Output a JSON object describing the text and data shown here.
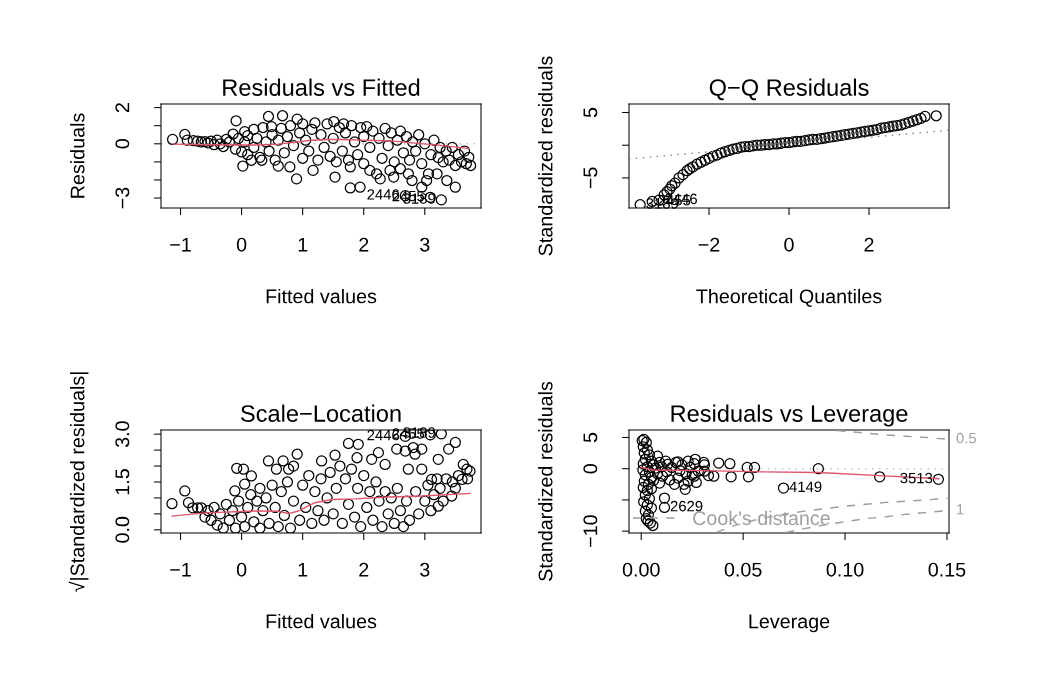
{
  "chart_data": [
    {
      "type": "scatter",
      "title": "Residuals vs Fitted",
      "xlabel": "Fitted values",
      "ylabel": "Residuals",
      "xlim": [
        -1.32,
        3.92
      ],
      "ylim": [
        -3.55,
        2.2
      ],
      "xticks": [
        {
          "value": -1,
          "label": "−1"
        },
        0,
        1,
        2,
        3
      ],
      "yticks": [
        2,
        {
          "value": 1,
          "label": null
        },
        0,
        {
          "value": -1,
          "label": null
        },
        {
          "value": -2,
          "label": null
        },
        {
          "value": -3,
          "label": "−3"
        }
      ],
      "series": [
        {
          "marker": "circle",
          "color": "#000000",
          "x": [
            -1.13,
            -0.93,
            -0.89,
            -0.79,
            -0.72,
            -0.66,
            -0.6,
            -0.55,
            -0.5,
            -0.45,
            -0.4,
            -0.35,
            -0.3,
            -0.25,
            -0.2,
            -0.14,
            -0.1,
            -0.09,
            -0.05,
            0.0,
            0.02,
            0.05,
            0.05,
            0.1,
            0.1,
            0.16,
            0.2,
            0.2,
            0.25,
            0.3,
            0.33,
            0.35,
            0.4,
            0.44,
            0.45,
            0.49,
            0.5,
            0.55,
            0.6,
            0.6,
            0.65,
            0.67,
            0.7,
            0.75,
            0.79,
            0.8,
            0.85,
            0.9,
            0.91,
            0.95,
            1.0,
            1.0,
            1.05,
            1.1,
            1.15,
            1.17,
            1.2,
            1.25,
            1.3,
            1.35,
            1.4,
            1.45,
            1.5,
            1.51,
            1.53,
            1.55,
            1.6,
            1.65,
            1.67,
            1.7,
            1.75,
            1.78,
            1.78,
            1.8,
            1.85,
            1.9,
            1.94,
            1.95,
            2.0,
            2.0,
            2.05,
            2.1,
            2.1,
            2.15,
            2.21,
            2.25,
            2.27,
            2.3,
            2.35,
            2.4,
            2.43,
            2.45,
            2.49,
            2.5,
            2.55,
            2.6,
            2.6,
            2.65,
            2.68,
            2.7,
            2.73,
            2.75,
            2.79,
            2.8,
            2.85,
            2.9,
            2.95,
            2.95,
            3.0,
            3.03,
            3.06,
            3.09,
            3.1,
            3.15,
            3.2,
            3.22,
            3.25,
            3.27,
            3.3,
            3.35,
            3.36,
            3.4,
            3.45,
            3.5,
            3.5,
            3.55,
            3.6,
            3.65,
            3.68,
            3.72,
            3.75
          ],
          "values": [
            0.24,
            0.52,
            0.2,
            0.17,
            0.15,
            0.1,
            0.12,
            0.05,
            0.15,
            -0.05,
            0.2,
            0.0,
            -0.15,
            0.25,
            0.1,
            0.54,
            -0.3,
            1.27,
            0.3,
            -0.45,
            -1.23,
            0.67,
            0.1,
            0.45,
            -0.6,
            -0.91,
            0.8,
            -0.2,
            0.3,
            -0.75,
            -0.91,
            0.9,
            0.1,
            1.51,
            -0.4,
            0.95,
            0.5,
            -0.9,
            -1.23,
            0.2,
            0.85,
            1.55,
            -0.5,
            0.4,
            -1.28,
            1.0,
            -0.1,
            -1.94,
            1.36,
            0.6,
            -0.8,
            1.1,
            0.2,
            -0.4,
            0.8,
            -1.47,
            1.15,
            -0.9,
            0.5,
            -0.2,
            1.1,
            -0.7,
            0.3,
            1.23,
            -1.84,
            -1.0,
            0.9,
            -0.4,
            1.1,
            0.6,
            -0.9,
            -1.28,
            -2.44,
            1.0,
            0.1,
            -0.6,
            -2.4,
            0.9,
            -1.1,
            0.4,
            0.95,
            -1.47,
            -0.2,
            0.7,
            -1.66,
            0.3,
            -1.94,
            -0.8,
            0.85,
            -0.1,
            -1.47,
            0.6,
            -1.84,
            -1.0,
            0.2,
            -1.38,
            0.7,
            -0.5,
            -2.87,
            0.4,
            -1.66,
            -0.9,
            -2.03,
            0.1,
            -0.4,
            0.5,
            -2.4,
            -1.1,
            0.0,
            -2.03,
            -1.66,
            -2.96,
            -0.6,
            0.2,
            -1.66,
            -0.76,
            -0.2,
            -3.1,
            -1.0,
            -0.4,
            -2.03,
            -0.9,
            -0.2,
            -2.4,
            -1.2,
            -0.6,
            -1.0,
            -0.4,
            -1.1,
            -0.75,
            -1.2
          ]
        },
        {
          "type": "line",
          "color": "#df536b",
          "line_style": "solid",
          "x": [
            -1.12,
            -0.52,
            0.0,
            0.3,
            0.6,
            0.85,
            1.1,
            1.39,
            1.6,
            1.94,
            2.2,
            2.49,
            2.8,
            3.03,
            3.3,
            3.72
          ],
          "values": [
            -0.02,
            -0.05,
            -0.07,
            -0.07,
            -0.02,
            0.08,
            0.18,
            0.24,
            0.24,
            0.2,
            0.18,
            0.15,
            0.05,
            -0.02,
            -0.1,
            -0.26
          ]
        }
      ],
      "ref_lines": [
        {
          "axis": "y",
          "value": 0,
          "color": "#bebebe",
          "line_style": "dotted"
        }
      ],
      "annotations": [
        {
          "text": "2446",
          "x": 2.68,
          "y": -2.87
        },
        {
          "text": "2455",
          "x": 3.09,
          "y": -2.96
        },
        {
          "text": "3189",
          "x": 3.27,
          "y": -3.1
        }
      ]
    },
    {
      "type": "scatter",
      "title": "Q−Q Residuals",
      "xlabel": "Theoretical Quantiles",
      "ylabel": "Standardized residuals",
      "xlim": [
        -4.0,
        4.0
      ],
      "ylim": [
        -9.6,
        6.3
      ],
      "xticks": [
        {
          "value": -2,
          "label": "−2"
        },
        0,
        2
      ],
      "yticks": [
        5,
        {
          "value": 0,
          "label": null
        },
        {
          "value": -5,
          "label": "−5"
        }
      ],
      "series": [
        {
          "marker": "circle",
          "color": "#000000",
          "x": [
            -3.72,
            -3.42,
            -3.25,
            -3.12,
            -3.05,
            -2.98,
            -2.93,
            -2.85,
            -2.75,
            -2.65,
            -2.55,
            -2.48,
            -2.4,
            -2.3,
            -2.2,
            -2.1,
            -2.0,
            -1.9,
            -1.8,
            -1.7,
            -1.6,
            -1.5,
            -1.4,
            -1.3,
            -1.2,
            -1.1,
            -1.0,
            -0.9,
            -0.8,
            -0.7,
            -0.6,
            -0.5,
            -0.4,
            -0.3,
            -0.2,
            -0.1,
            0.0,
            0.1,
            0.2,
            0.3,
            0.4,
            0.5,
            0.6,
            0.7,
            0.8,
            0.9,
            1.0,
            1.1,
            1.2,
            1.3,
            1.4,
            1.5,
            1.6,
            1.7,
            1.8,
            1.9,
            2.0,
            2.1,
            2.2,
            2.3,
            2.4,
            2.5,
            2.6,
            2.7,
            2.8,
            2.9,
            3.0,
            3.1,
            3.2,
            3.3,
            3.4,
            3.68
          ],
          "values": [
            -9.1,
            -8.6,
            -8.4,
            -7.6,
            -7.1,
            -6.7,
            -6.2,
            -5.8,
            -5.0,
            -4.5,
            -3.9,
            -3.6,
            -3.3,
            -2.9,
            -2.6,
            -2.3,
            -2.0,
            -1.7,
            -1.5,
            -1.2,
            -1.0,
            -0.8,
            -0.6,
            -0.5,
            -0.3,
            -0.2,
            -0.2,
            -0.1,
            0.0,
            0.0,
            0.1,
            0.1,
            0.2,
            0.2,
            0.3,
            0.4,
            0.4,
            0.5,
            0.6,
            0.6,
            0.7,
            0.8,
            0.9,
            0.9,
            1.0,
            1.1,
            1.2,
            1.3,
            1.4,
            1.5,
            1.6,
            1.7,
            1.8,
            1.9,
            2.0,
            2.1,
            2.2,
            2.3,
            2.4,
            2.6,
            2.7,
            2.8,
            2.9,
            3.0,
            3.1,
            3.3,
            3.5,
            3.7,
            3.9,
            4.1,
            4.4,
            4.5
          ]
        },
        {
          "type": "line",
          "color": "#7f7f7f",
          "line_style": "dotted",
          "x": [
            -4.0,
            4.0
          ],
          "values": [
            -2.1,
            2.3
          ]
        }
      ],
      "annotations": [
        {
          "text": "3189",
          "x": -3.72,
          "y": -9.1
        },
        {
          "text": "2455",
          "x": -3.42,
          "y": -8.6
        },
        {
          "text": "2446",
          "x": -3.25,
          "y": -8.4
        }
      ]
    },
    {
      "type": "scatter",
      "title": "Scale−Location",
      "xlabel": "Fitted values",
      "ylabel": "√|Standardized residuals|",
      "xlim": [
        -1.32,
        3.92
      ],
      "ylim": [
        -0.1,
        3.13
      ],
      "xticks": [
        {
          "value": -1,
          "label": "−1"
        },
        0,
        1,
        2,
        3
      ],
      "yticks": [
        {
          "value": 0,
          "label": "0.0"
        },
        {
          "value": 0.5,
          "label": null
        },
        {
          "value": 1,
          "label": null
        },
        1.5,
        {
          "value": 2,
          "label": null
        },
        {
          "value": 2.5,
          "label": null
        },
        {
          "value": 3,
          "label": "3.0"
        }
      ],
      "series": [
        {
          "marker": "circle",
          "color": "#000000",
          "x": [
            -1.14,
            -0.93,
            -0.87,
            -0.8,
            -0.72,
            -0.66,
            -0.6,
            -0.55,
            -0.5,
            -0.45,
            -0.4,
            -0.35,
            -0.3,
            -0.25,
            -0.2,
            -0.15,
            -0.11,
            -0.1,
            -0.08,
            -0.05,
            0.0,
            0.03,
            0.05,
            0.05,
            0.1,
            0.15,
            0.16,
            0.2,
            0.25,
            0.3,
            0.3,
            0.35,
            0.4,
            0.44,
            0.45,
            0.5,
            0.55,
            0.57,
            0.6,
            0.65,
            0.68,
            0.7,
            0.75,
            0.77,
            0.8,
            0.85,
            0.85,
            0.91,
            0.95,
            1.0,
            1.05,
            1.1,
            1.15,
            1.2,
            1.25,
            1.3,
            1.31,
            1.35,
            1.4,
            1.45,
            1.5,
            1.53,
            1.55,
            1.61,
            1.65,
            1.7,
            1.75,
            1.75,
            1.8,
            1.85,
            1.89,
            1.9,
            1.91,
            1.95,
            2.0,
            2.05,
            2.1,
            2.13,
            2.15,
            2.2,
            2.24,
            2.25,
            2.3,
            2.35,
            2.35,
            2.4,
            2.45,
            2.5,
            2.54,
            2.55,
            2.6,
            2.65,
            2.68,
            2.68,
            2.7,
            2.73,
            2.75,
            2.81,
            2.84,
            2.85,
            2.9,
            2.95,
            2.95,
            3.0,
            3.05,
            3.09,
            3.1,
            3.11,
            3.15,
            3.2,
            3.22,
            3.22,
            3.25,
            3.27,
            3.3,
            3.35,
            3.39,
            3.44,
            3.45,
            3.5,
            3.5,
            3.55,
            3.61,
            3.63,
            3.69,
            3.7,
            3.74
          ],
          "values": [
            0.82,
            1.22,
            0.85,
            0.69,
            0.69,
            0.69,
            0.4,
            0.6,
            0.3,
            0.7,
            0.15,
            0.5,
            0.05,
            0.8,
            0.3,
            0.6,
            1.22,
            0.05,
            1.93,
            0.9,
            0.4,
            1.9,
            1.43,
            0.1,
            0.7,
            1.1,
            1.69,
            0.25,
            0.9,
            0.05,
            1.3,
            0.6,
            1.0,
            2.16,
            0.2,
            1.4,
            0.7,
            1.9,
            0.1,
            1.2,
            2.16,
            0.45,
            1.5,
            1.9,
            0.05,
            2.0,
            0.9,
            2.37,
            0.3,
            1.4,
            0.7,
            1.7,
            0.2,
            1.2,
            0.6,
            1.6,
            2.16,
            0.3,
            1.0,
            1.8,
            0.5,
            2.34,
            1.3,
            2.0,
            0.2,
            1.6,
            2.71,
            0.8,
            1.9,
            0.4,
            2.26,
            1.3,
            2.68,
            0.1,
            1.7,
            0.7,
            1.2,
            2.21,
            0.3,
            1.5,
            2.42,
            0.9,
            0.1,
            2.05,
            1.2,
            0.5,
            1.0,
            0.2,
            2.53,
            1.3,
            0.6,
            0.1,
            2.47,
            2.93,
            0.9,
            1.9,
            0.3,
            2.58,
            2.37,
            1.2,
            0.5,
            2.53,
            1.9,
            0.9,
            1.4,
            2.98,
            0.6,
            1.58,
            1.1,
            1.6,
            2.21,
            0.74,
            1.3,
            3.01,
            0.9,
            1.6,
            2.53,
            1.06,
            1.5,
            2.74,
            1.3,
            1.7,
            1.58,
            2.05,
            1.9,
            1.6,
            1.84
          ]
        },
        {
          "type": "line",
          "color": "#df536b",
          "line_style": "solid",
          "x": [
            -1.14,
            -0.6,
            0.22,
            0.6,
            0.77,
            0.93,
            1.2,
            1.48,
            1.86,
            2.4,
            2.95,
            3.74
          ],
          "values": [
            0.43,
            0.53,
            0.59,
            0.58,
            0.51,
            0.59,
            0.85,
            0.95,
            0.97,
            1.03,
            1.06,
            1.14
          ]
        }
      ],
      "annotations": [
        {
          "text": "2446",
          "x": 2.68,
          "y": 2.93
        },
        {
          "text": "2455",
          "x": 3.09,
          "y": 2.98
        },
        {
          "text": "3189",
          "x": 3.27,
          "y": 3.01
        }
      ]
    },
    {
      "type": "scatter",
      "title": "Residuals vs Leverage",
      "xlabel": "Leverage",
      "ylabel": "Standardized residuals",
      "xlim": [
        -0.006,
        0.151
      ],
      "ylim": [
        -10.3,
        6.2
      ],
      "xticks": [
        {
          "value": 0,
          "label": "0.00"
        },
        0.05,
        {
          "value": 0.1,
          "label": "0.10"
        },
        0.15
      ],
      "yticks": [
        5,
        0,
        {
          "value": -5,
          "label": null
        },
        {
          "value": -10,
          "label": "−10"
        }
      ],
      "legend": "bottom left",
      "series": [
        {
          "marker": "circle",
          "color": "#000000",
          "x": [
            0.0005,
            0.0013,
            0.0025,
            0.001,
            0.003,
            0.0015,
            0.004,
            0.002,
            0.005,
            0.001,
            0.003,
            0.006,
            0.0008,
            0.004,
            0.007,
            0.002,
            0.005,
            0.0015,
            0.0035,
            0.006,
            0.001,
            0.003,
            0.005,
            0.002,
            0.004,
            0.0012,
            0.003,
            0.005,
            0.002,
            0.0035,
            0.0025,
            0.0033,
            0.0045,
            0.0057,
            0.008,
            0.009,
            0.008,
            0.009,
            0.01,
            0.0105,
            0.0114,
            0.0114,
            0.012,
            0.013,
            0.0125,
            0.014,
            0.015,
            0.0163,
            0.017,
            0.018,
            0.018,
            0.019,
            0.02,
            0.021,
            0.0216,
            0.022,
            0.023,
            0.023,
            0.024,
            0.025,
            0.026,
            0.0265,
            0.026,
            0.027,
            0.028,
            0.0307,
            0.031,
            0.031,
            0.033,
            0.0356,
            0.038,
            0.0435,
            0.0441,
            0.052,
            0.0526,
            0.0556,
            0.0698,
            0.0869,
            0.117,
            0.1458
          ],
          "values": [
            4.5,
            4.7,
            4.2,
            3.5,
            3.0,
            2.5,
            2.2,
            1.5,
            1.2,
            0.8,
            0.3,
            0.6,
            -0.2,
            -0.5,
            0.1,
            -1.0,
            -1.4,
            -2.0,
            -2.5,
            -1.9,
            -3.0,
            -3.5,
            -3.2,
            -4.2,
            -4.8,
            -5.3,
            -5.8,
            -6.3,
            -6.8,
            -7.4,
            -8.0,
            -8.4,
            -8.7,
            -9.1,
            2.0,
            1.0,
            -0.8,
            -2.3,
            0.3,
            -1.2,
            -4.7,
            -6.2,
            1.2,
            0.7,
            -0.5,
            -1.8,
            0.2,
            -2.5,
            1.0,
            1.1,
            -1.5,
            -0.3,
            0.6,
            -2.5,
            -3.3,
            -0.8,
            1.2,
            -2.0,
            0.2,
            -1.0,
            0.8,
            1.5,
            -1.2,
            -2.2,
            -0.4,
            1.0,
            0.6,
            -0.4,
            -1.1,
            -1.2,
            0.9,
            0.8,
            -1.3,
            0.2,
            -1.3,
            0.2,
            -3.1,
            0.0,
            -1.3,
            -1.7
          ]
        },
        {
          "type": "line",
          "color": "#df536b",
          "line_style": "solid",
          "x": [
            0.0,
            0.006,
            0.03,
            0.06,
            0.087,
            0.117,
            0.146
          ],
          "values": [
            0.2,
            -0.2,
            -0.3,
            -0.5,
            -0.6,
            -1.1,
            -1.6
          ]
        },
        {
          "type": "line",
          "name": "Cook's distance",
          "color": "#9e9e9e",
          "line_style": "dashed",
          "x": [
            0.037,
            0.04,
            0.045,
            0.05,
            0.06,
            0.07,
            0.08,
            0.09,
            0.1,
            0.11,
            0.12,
            0.13,
            0.14,
            0.151
          ],
          "values": [
            -10.2,
            -9.8,
            -9.2,
            -8.7,
            -7.9,
            -7.3,
            -6.8,
            -6.4,
            -6.0,
            -5.7,
            -5.4,
            -5.2,
            -5.0,
            -4.7
          ]
        },
        {
          "type": "line",
          "color": "#9e9e9e",
          "line_style": "dashed",
          "x": [
            0.096,
            0.1,
            0.11,
            0.12,
            0.13,
            0.14,
            0.151
          ],
          "values": [
            6.1,
            6.0,
            5.7,
            5.4,
            5.2,
            5.0,
            4.7
          ]
        },
        {
          "type": "line",
          "color": "#9e9e9e",
          "line_style": "dashed",
          "x": [
            0.071,
            0.08,
            0.09,
            0.1,
            0.11,
            0.12,
            0.13,
            0.14,
            0.151
          ],
          "values": [
            -10.2,
            -9.6,
            -9.0,
            -8.5,
            -8.0,
            -7.7,
            -7.3,
            -7.0,
            -6.7
          ]
        }
      ],
      "ref_lines": [
        {
          "axis": "y",
          "value": 0,
          "color": "#bebebe",
          "line_style": "dotted"
        },
        {
          "axis": "x",
          "value": 0,
          "color": "#bebebe",
          "line_style": "dotted"
        }
      ],
      "annotations": [
        {
          "text": "2629",
          "x": 0.0114,
          "y": -6.2
        },
        {
          "text": "4149",
          "x": 0.0698,
          "y": -3.1
        },
        {
          "text": "3513",
          "x": 0.1458,
          "y": -1.7
        },
        {
          "text": "0.5",
          "x": 0.151,
          "y": 4.7
        },
        {
          "text": "1",
          "x": 0.151,
          "y": -6.7
        }
      ]
    }
  ]
}
